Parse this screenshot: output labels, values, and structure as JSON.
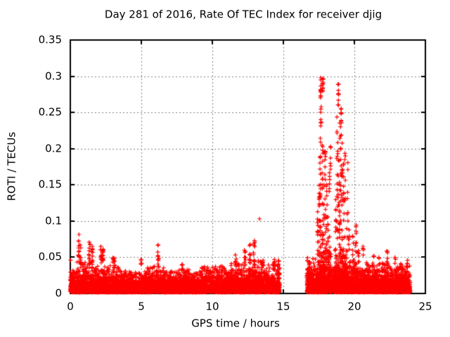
{
  "chart_data": {
    "type": "scatter",
    "title": "Day 281 of 2016, Rate Of TEC Index for receiver djig",
    "xlabel": "GPS time / hours",
    "ylabel": "ROTI / TECUs",
    "xlim": [
      0,
      25
    ],
    "ylim": [
      0,
      0.35
    ],
    "xticks": [
      0,
      5,
      10,
      15,
      20,
      25
    ],
    "xtick_labels": [
      "0",
      "5",
      "10",
      "15",
      "20",
      "25"
    ],
    "yticks": [
      0,
      0.05,
      0.1,
      0.15,
      0.2,
      0.25,
      0.3,
      0.35
    ],
    "ytick_labels": [
      "0",
      "0.05",
      "0.1",
      "0.15",
      "0.2",
      "0.25",
      "0.3",
      "0.35"
    ],
    "grid": true,
    "legend": "none",
    "marker": "plus",
    "marker_size_px": 7,
    "colors": {
      "points": "#ff0000",
      "grid": "#808080",
      "axis": "#000000",
      "background": "#ffffff",
      "text": "#000000"
    },
    "seed": 281,
    "data_gaps": [
      [
        14.75,
        16.65
      ]
    ],
    "band_columns": [
      "t_start",
      "t_end",
      "n_points",
      "y_envelope",
      "y_mean"
    ],
    "bands": [
      [
        0.0,
        0.45,
        200,
        0.042,
        0.01
      ],
      [
        0.45,
        0.95,
        220,
        0.048,
        0.01
      ],
      [
        0.95,
        1.8,
        350,
        0.045,
        0.01
      ],
      [
        1.8,
        2.6,
        330,
        0.042,
        0.01
      ],
      [
        2.6,
        3.4,
        320,
        0.04,
        0.01
      ],
      [
        3.4,
        5.2,
        650,
        0.032,
        0.009
      ],
      [
        5.2,
        6.6,
        500,
        0.038,
        0.01
      ],
      [
        6.6,
        9.2,
        950,
        0.034,
        0.009
      ],
      [
        9.2,
        11.2,
        750,
        0.038,
        0.01
      ],
      [
        11.2,
        12.6,
        520,
        0.042,
        0.01
      ],
      [
        12.6,
        13.6,
        380,
        0.046,
        0.011
      ],
      [
        13.6,
        14.75,
        420,
        0.042,
        0.01
      ],
      [
        16.65,
        17.3,
        330,
        0.052,
        0.012
      ],
      [
        17.3,
        18.35,
        700,
        0.06,
        0.014
      ],
      [
        18.35,
        18.6,
        70,
        0.05,
        0.012
      ],
      [
        18.6,
        19.45,
        600,
        0.065,
        0.014
      ],
      [
        19.45,
        20.35,
        420,
        0.05,
        0.012
      ],
      [
        20.35,
        21.5,
        520,
        0.04,
        0.011
      ],
      [
        21.5,
        22.5,
        450,
        0.042,
        0.011
      ],
      [
        22.5,
        23.3,
        360,
        0.038,
        0.01
      ],
      [
        23.3,
        23.95,
        300,
        0.04,
        0.01
      ]
    ],
    "spike_columns": [
      "t_center",
      "t_width",
      "n_points",
      "y_min",
      "y_max"
    ],
    "spikes": [
      [
        0.6,
        0.06,
        12,
        0.05,
        0.083
      ],
      [
        0.72,
        0.05,
        8,
        0.04,
        0.068
      ],
      [
        1.35,
        0.1,
        14,
        0.04,
        0.072
      ],
      [
        1.55,
        0.08,
        10,
        0.04,
        0.065
      ],
      [
        2.15,
        0.1,
        12,
        0.04,
        0.065
      ],
      [
        2.3,
        0.1,
        16,
        0.045,
        0.062
      ],
      [
        3.05,
        0.15,
        10,
        0.035,
        0.05
      ],
      [
        5.0,
        0.06,
        5,
        0.04,
        0.053
      ],
      [
        6.2,
        0.08,
        10,
        0.04,
        0.068
      ],
      [
        7.9,
        0.1,
        6,
        0.032,
        0.044
      ],
      [
        11.65,
        0.1,
        8,
        0.035,
        0.055
      ],
      [
        12.3,
        0.12,
        10,
        0.038,
        0.06
      ],
      [
        12.65,
        0.08,
        10,
        0.04,
        0.07
      ],
      [
        12.95,
        0.12,
        12,
        0.04,
        0.075
      ],
      [
        13.55,
        0.1,
        6,
        0.035,
        0.05
      ],
      [
        14.35,
        0.1,
        8,
        0.03,
        0.05
      ],
      [
        14.65,
        0.08,
        10,
        0.02,
        0.048
      ],
      [
        17.42,
        0.05,
        10,
        0.05,
        0.115
      ],
      [
        17.52,
        0.06,
        14,
        0.05,
        0.16
      ],
      [
        17.6,
        0.05,
        25,
        0.06,
        0.215
      ],
      [
        17.63,
        0.04,
        14,
        0.27,
        0.302
      ],
      [
        17.65,
        0.04,
        8,
        0.23,
        0.26
      ],
      [
        17.75,
        0.06,
        22,
        0.06,
        0.22
      ],
      [
        17.78,
        0.05,
        12,
        0.275,
        0.297
      ],
      [
        17.85,
        0.05,
        10,
        0.05,
        0.155
      ],
      [
        17.95,
        0.06,
        16,
        0.05,
        0.21
      ],
      [
        18.05,
        0.06,
        12,
        0.05,
        0.16
      ],
      [
        18.15,
        0.05,
        10,
        0.04,
        0.135
      ],
      [
        18.25,
        0.06,
        10,
        0.04,
        0.19
      ],
      [
        18.32,
        0.04,
        6,
        0.15,
        0.21
      ],
      [
        18.68,
        0.05,
        10,
        0.05,
        0.14
      ],
      [
        18.78,
        0.05,
        16,
        0.05,
        0.25
      ],
      [
        18.85,
        0.05,
        14,
        0.06,
        0.305
      ],
      [
        18.88,
        0.04,
        8,
        0.26,
        0.29
      ],
      [
        18.95,
        0.06,
        18,
        0.05,
        0.24
      ],
      [
        19.05,
        0.06,
        16,
        0.05,
        0.26
      ],
      [
        19.08,
        0.04,
        10,
        0.23,
        0.26
      ],
      [
        19.15,
        0.06,
        14,
        0.05,
        0.22
      ],
      [
        19.25,
        0.06,
        12,
        0.04,
        0.18
      ],
      [
        19.35,
        0.06,
        10,
        0.04,
        0.2
      ],
      [
        19.5,
        0.1,
        10,
        0.05,
        0.19
      ],
      [
        19.62,
        0.08,
        8,
        0.04,
        0.1
      ],
      [
        19.9,
        0.1,
        8,
        0.035,
        0.09
      ],
      [
        20.1,
        0.1,
        10,
        0.035,
        0.095
      ],
      [
        20.28,
        0.08,
        6,
        0.03,
        0.065
      ],
      [
        20.6,
        0.1,
        8,
        0.03,
        0.072
      ],
      [
        20.9,
        0.1,
        5,
        0.03,
        0.05
      ],
      [
        21.35,
        0.1,
        6,
        0.03,
        0.055
      ],
      [
        21.75,
        0.1,
        5,
        0.03,
        0.05
      ],
      [
        22.3,
        0.1,
        7,
        0.03,
        0.065
      ],
      [
        22.9,
        0.1,
        5,
        0.03,
        0.05
      ],
      [
        23.3,
        0.1,
        5,
        0.028,
        0.048
      ],
      [
        23.7,
        0.1,
        6,
        0.028,
        0.05
      ]
    ],
    "outlier_points": [
      [
        0.02,
        0.046
      ],
      [
        13.32,
        0.103
      ]
    ],
    "band_floor": 0.0015
  }
}
